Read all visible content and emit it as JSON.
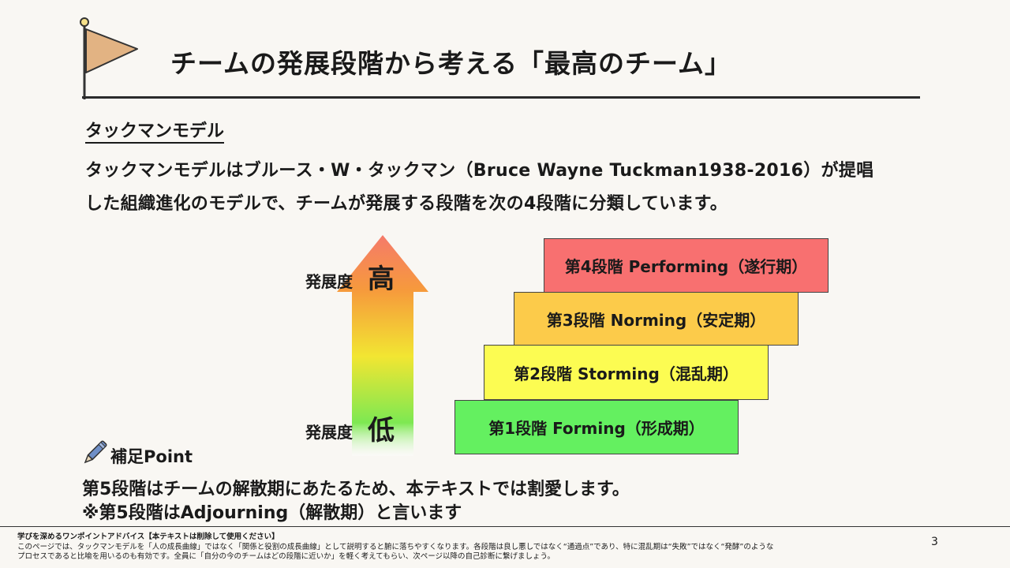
{
  "title": "チームの発展段階から考える「最高のチーム」",
  "section_label": "タックマンモデル",
  "description": [
    "タックマンモデルはブルース・W・タックマン（Bruce Wayne Tuckman1938-2016）が提唱",
    "した組織進化のモデルで、チームが発展する段階を次の4段階に分類しています。"
  ],
  "axis": {
    "high_label": "発展度",
    "high_value": "高",
    "low_label": "発展度",
    "low_value": "低"
  },
  "stages": [
    {
      "label": "第4段階 Performing（遂行期）",
      "color": "#f87070"
    },
    {
      "label": "第3段階 Norming（安定期）",
      "color": "#fccb4a"
    },
    {
      "label": "第2段階 Storming（混乱期）",
      "color": "#fcfc52"
    },
    {
      "label": "第1段階 Forming（形成期）",
      "color": "#64f060"
    }
  ],
  "point": {
    "label": "補足Point",
    "lines": [
      "第5段階はチームの解散期にあたるため、本テキストでは割愛します。",
      "※第5段階はAdjourning（解散期）と言います"
    ]
  },
  "footer": {
    "heading": "学びを深めるワンポイントアドバイス【本テキストは削除して使用ください】",
    "line1": "このページでは、タックマンモデルを「人の成長曲線」ではなく「関係と役割の成長曲線」として説明すると腑に落ちやすくなります。各段階は良し悪しではなく“通過点”であり、特に混乱期は“失敗”ではなく“発酵”のような",
    "line2": "プロセスであると比喩を用いるのも有効です。全員に「自分の今のチームはどの段階に近いか」を軽く考えてもらい、次ページ以降の自己診断に繋げましょう。"
  },
  "page_number": "3",
  "icons": {
    "flag": "flag-icon",
    "pen": "pen-icon"
  }
}
